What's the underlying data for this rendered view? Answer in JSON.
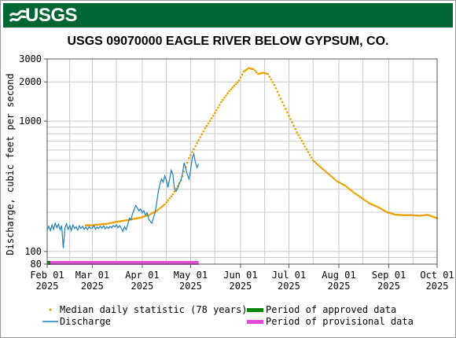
{
  "header": {
    "agency": "USGS",
    "site_title": "USGS 09070000 EAGLE RIVER BELOW GYPSUM, CO."
  },
  "colors": {
    "banner": "#006633",
    "median": "#e8a200",
    "discharge": "#1b7fbf",
    "approved": "#008800",
    "provisional": "#e14cd8",
    "grid": "#c8c8c8"
  },
  "chart_data": {
    "type": "line",
    "title": "USGS 09070000 EAGLE RIVER BELOW GYPSUM, CO.",
    "ylabel": "Discharge, cubic feet per second",
    "yscale": "log",
    "ylim": [
      80,
      3000
    ],
    "y_tick_labels": [
      "3000",
      "2000",
      "1000",
      "100",
      "80"
    ],
    "x_tick_labels": [
      [
        "Feb 01",
        "2025"
      ],
      [
        "Mar 01",
        "2025"
      ],
      [
        "Apr 01",
        "2025"
      ],
      [
        "May 01",
        "2025"
      ],
      [
        "Jun 01",
        "2025"
      ],
      [
        "Jul 01",
        "2025"
      ],
      [
        "Aug 01",
        "2025"
      ],
      [
        "Sep 01",
        "2025"
      ],
      [
        "Oct 01",
        "2025"
      ]
    ],
    "x_range": [
      "2025-02-01",
      "2025-10-01"
    ],
    "grid": true,
    "legend_position": "bottom",
    "series": [
      {
        "name": "Median daily statistic (78 years)",
        "style": "dots",
        "points": [
          [
            "2025-02-01",
            158
          ],
          [
            "2025-02-15",
            158
          ],
          [
            "2025-03-01",
            159
          ],
          [
            "2025-03-10",
            163
          ],
          [
            "2025-03-15",
            168
          ],
          [
            "2025-03-20",
            172
          ],
          [
            "2025-03-25",
            176
          ],
          [
            "2025-03-31",
            182
          ],
          [
            "2025-04-05",
            190
          ],
          [
            "2025-04-10",
            205
          ],
          [
            "2025-04-15",
            230
          ],
          [
            "2025-04-20",
            275
          ],
          [
            "2025-04-25",
            350
          ],
          [
            "2025-04-30",
            520
          ],
          [
            "2025-05-05",
            680
          ],
          [
            "2025-05-10",
            880
          ],
          [
            "2025-05-15",
            1100
          ],
          [
            "2025-05-20",
            1400
          ],
          [
            "2025-05-25",
            1700
          ],
          [
            "2025-05-31",
            2050
          ],
          [
            "2025-06-03",
            2400
          ],
          [
            "2025-06-06",
            2550
          ],
          [
            "2025-06-09",
            2500
          ],
          [
            "2025-06-12",
            2300
          ],
          [
            "2025-06-15",
            2350
          ],
          [
            "2025-06-18",
            2300
          ],
          [
            "2025-06-22",
            1900
          ],
          [
            "2025-06-27",
            1400
          ],
          [
            "2025-07-01",
            1100
          ],
          [
            "2025-07-06",
            820
          ],
          [
            "2025-07-11",
            640
          ],
          [
            "2025-07-16",
            500
          ],
          [
            "2025-07-21",
            440
          ],
          [
            "2025-07-26",
            390
          ],
          [
            "2025-07-31",
            345
          ],
          [
            "2025-08-05",
            320
          ],
          [
            "2025-08-10",
            285
          ],
          [
            "2025-08-15",
            258
          ],
          [
            "2025-08-20",
            234
          ],
          [
            "2025-08-25",
            220
          ],
          [
            "2025-08-31",
            200
          ],
          [
            "2025-09-05",
            192
          ],
          [
            "2025-09-10",
            190
          ],
          [
            "2025-09-15",
            190
          ],
          [
            "2025-09-20",
            188
          ],
          [
            "2025-09-25",
            191
          ],
          [
            "2025-10-01",
            180
          ]
        ]
      },
      {
        "name": "Discharge",
        "style": "line",
        "points": [
          [
            "2025-02-01",
            146
          ],
          [
            "2025-02-02",
            156
          ],
          [
            "2025-02-03",
            145
          ],
          [
            "2025-02-04",
            160
          ],
          [
            "2025-02-05",
            148
          ],
          [
            "2025-02-06",
            165
          ],
          [
            "2025-02-07",
            152
          ],
          [
            "2025-02-08",
            162
          ],
          [
            "2025-02-09",
            147
          ],
          [
            "2025-02-10",
            158
          ],
          [
            "2025-02-11",
            106
          ],
          [
            "2025-02-12",
            150
          ],
          [
            "2025-02-13",
            163
          ],
          [
            "2025-02-14",
            148
          ],
          [
            "2025-02-15",
            158
          ],
          [
            "2025-02-16",
            145
          ],
          [
            "2025-02-17",
            160
          ],
          [
            "2025-02-18",
            150
          ],
          [
            "2025-02-19",
            155
          ],
          [
            "2025-02-20",
            146
          ],
          [
            "2025-02-21",
            157
          ],
          [
            "2025-02-22",
            150
          ],
          [
            "2025-02-23",
            156
          ],
          [
            "2025-02-24",
            148
          ],
          [
            "2025-02-25",
            154
          ],
          [
            "2025-02-26",
            147
          ],
          [
            "2025-02-27",
            155
          ],
          [
            "2025-02-28",
            150
          ],
          [
            "2025-03-01",
            152
          ],
          [
            "2025-03-02",
            158
          ],
          [
            "2025-03-03",
            148
          ],
          [
            "2025-03-04",
            154
          ],
          [
            "2025-03-05",
            150
          ],
          [
            "2025-03-06",
            156
          ],
          [
            "2025-03-07",
            151
          ],
          [
            "2025-03-08",
            157
          ],
          [
            "2025-03-09",
            149
          ],
          [
            "2025-03-10",
            155
          ],
          [
            "2025-03-11",
            150
          ],
          [
            "2025-03-12",
            156
          ],
          [
            "2025-03-13",
            152
          ],
          [
            "2025-03-14",
            158
          ],
          [
            "2025-03-15",
            154
          ],
          [
            "2025-03-16",
            160
          ],
          [
            "2025-03-17",
            152
          ],
          [
            "2025-03-18",
            158
          ],
          [
            "2025-03-19",
            150
          ],
          [
            "2025-03-20",
            143
          ],
          [
            "2025-03-21",
            155
          ],
          [
            "2025-03-22",
            147
          ],
          [
            "2025-03-23",
            160
          ],
          [
            "2025-03-24",
            180
          ],
          [
            "2025-03-25",
            175
          ],
          [
            "2025-03-26",
            195
          ],
          [
            "2025-03-27",
            210
          ],
          [
            "2025-03-28",
            225
          ],
          [
            "2025-03-29",
            215
          ],
          [
            "2025-03-30",
            205
          ],
          [
            "2025-03-31",
            212
          ],
          [
            "2025-04-01",
            198
          ],
          [
            "2025-04-02",
            205
          ],
          [
            "2025-04-03",
            190
          ],
          [
            "2025-04-04",
            198
          ],
          [
            "2025-04-05",
            178
          ],
          [
            "2025-04-06",
            170
          ],
          [
            "2025-04-07",
            165
          ],
          [
            "2025-04-08",
            182
          ],
          [
            "2025-04-09",
            200
          ],
          [
            "2025-04-10",
            240
          ],
          [
            "2025-04-11",
            290
          ],
          [
            "2025-04-12",
            330
          ],
          [
            "2025-04-13",
            360
          ],
          [
            "2025-04-14",
            340
          ],
          [
            "2025-04-15",
            380
          ],
          [
            "2025-04-16",
            350
          ],
          [
            "2025-04-17",
            310
          ],
          [
            "2025-04-18",
            360
          ],
          [
            "2025-04-19",
            420
          ],
          [
            "2025-04-20",
            390
          ],
          [
            "2025-04-21",
            300
          ],
          [
            "2025-04-22",
            290
          ],
          [
            "2025-04-23",
            305
          ],
          [
            "2025-04-24",
            335
          ],
          [
            "2025-04-25",
            350
          ],
          [
            "2025-04-26",
            400
          ],
          [
            "2025-04-27",
            480
          ],
          [
            "2025-04-28",
            430
          ],
          [
            "2025-04-29",
            390
          ],
          [
            "2025-04-30",
            360
          ],
          [
            "2025-05-01",
            420
          ],
          [
            "2025-05-02",
            520
          ],
          [
            "2025-05-03",
            560
          ],
          [
            "2025-05-04",
            480
          ],
          [
            "2025-05-05",
            440
          ],
          [
            "2025-05-06",
            470
          ]
        ]
      }
    ],
    "periods": [
      {
        "name": "Period of approved data",
        "start": "2025-02-01",
        "end": "2025-02-01"
      },
      {
        "name": "Period of provisional data",
        "start": "2025-02-01",
        "end": "2025-05-06"
      }
    ]
  }
}
